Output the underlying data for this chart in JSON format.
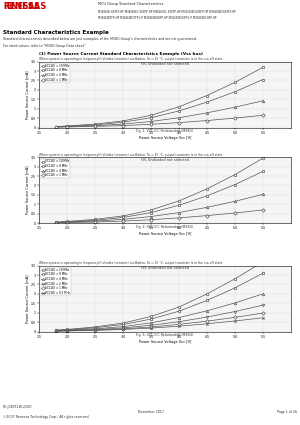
{
  "title_right": "MCU Group Standard Characteristics",
  "title_right2": "M38260E XXXFP-HP M38260EC XXXFP-HP M38260EL XXXFP-HP M38260ECXXXFP-HP M38260ECXXXFP-HP",
  "title_right3": "M38260ETFP-HP M38260ECYFP-HP M38260EDHFP-HP M38260ECHFP-HP M38260ECHFP-HP",
  "section_title": "Standard Characteristics Example",
  "section_sub1": "Standard characteristics described below are just examples of the M38G Group's characteristics and are not guaranteed.",
  "section_sub2": "For rated values, refer to \"M38G Group Data sheet\".",
  "chart1_title": "(1) Power Source Current Standard Characteristics Example (Vss bus)",
  "chart1_condition": "When system is operating in frequency(f) divides (ceramic) oscillation, Ta = 25 °C, output transistor is in the cut-off state.",
  "chart1_subtitle": "H/L Undivided not selected",
  "chart1_xlabel": "Power Source Voltage Vcc [V]",
  "chart1_ylabel": "Power Source Current [mA]",
  "chart1_figcap": "Fig. 1: VCC-ICC Relationship (M38G)",
  "chart2_condition": "When system is operating in frequency(f) divides (ceramic) oscillation, Ta = 25 °C, output transistor is in the cut-off state.",
  "chart2_subtitle": "H/L Undivided not selected",
  "chart2_xlabel": "Power Source Voltage Vcc [V]",
  "chart2_ylabel": "Power Source Current [mA]",
  "chart2_figcap": "Fig. 2: VCC-ICC Relationship (M38G)",
  "chart3_condition": "When system is operating in frequency(f) divides (ceramic) oscillation, Ta = 25 °C, output transistor is in the cut-off state.",
  "chart3_subtitle": "H/L Undivided not selected",
  "chart3_xlabel": "Power Source Voltage Vcc [V]",
  "chart3_ylabel": "Power Source Current [mA]",
  "chart3_figcap": "Fig. 3: VCC-ICC Relationship (M38G)",
  "vcc": [
    1.8,
    2.0,
    2.5,
    3.0,
    3.5,
    4.0,
    4.5,
    5.0,
    5.5
  ],
  "chart1_series": [
    {
      "label": "f(CCLK) = 10 MHz",
      "marker": "o",
      "color": "#555555",
      "data": [
        0.05,
        0.08,
        0.18,
        0.35,
        0.65,
        1.1,
        1.7,
        2.4,
        3.2
      ]
    },
    {
      "label": "f(CCLK) = 8 MHz",
      "marker": "s",
      "color": "#555555",
      "data": [
        0.04,
        0.07,
        0.14,
        0.28,
        0.52,
        0.88,
        1.35,
        1.9,
        2.55
      ]
    },
    {
      "label": "f(CCLK) = 4 MHz",
      "marker": "^",
      "color": "#555555",
      "data": [
        0.03,
        0.05,
        0.1,
        0.18,
        0.32,
        0.52,
        0.78,
        1.08,
        1.42
      ]
    },
    {
      "label": "f(CCLK) = 1 MHz",
      "marker": "D",
      "color": "#555555",
      "data": [
        0.02,
        0.03,
        0.06,
        0.1,
        0.17,
        0.26,
        0.37,
        0.5,
        0.65
      ]
    }
  ],
  "chart2_series": [
    {
      "label": "f(CCLK) = 10 MHz",
      "marker": "o",
      "color": "#555555",
      "data": [
        0.05,
        0.09,
        0.2,
        0.38,
        0.7,
        1.18,
        1.82,
        2.58,
        3.45
      ]
    },
    {
      "label": "f(CCLK) = 8 MHz",
      "marker": "s",
      "color": "#555555",
      "data": [
        0.04,
        0.07,
        0.15,
        0.3,
        0.56,
        0.95,
        1.45,
        2.05,
        2.75
      ]
    },
    {
      "label": "f(CCLK) = 4 MHz",
      "marker": "^",
      "color": "#555555",
      "data": [
        0.03,
        0.05,
        0.11,
        0.2,
        0.35,
        0.56,
        0.84,
        1.16,
        1.53
      ]
    },
    {
      "label": "f(CCLK) = 1 MHz",
      "marker": "D",
      "color": "#555555",
      "data": [
        0.02,
        0.03,
        0.06,
        0.11,
        0.18,
        0.28,
        0.4,
        0.54,
        0.7
      ]
    }
  ],
  "chart3_series": [
    {
      "label": "f(CCLK) = 10 MHz",
      "marker": "o",
      "color": "#555555",
      "data": [
        0.07,
        0.11,
        0.24,
        0.45,
        0.8,
        1.3,
        2.0,
        2.8,
        3.7
      ]
    },
    {
      "label": "f(CCLK) = 8 MHz",
      "marker": "s",
      "color": "#555555",
      "data": [
        0.06,
        0.09,
        0.2,
        0.37,
        0.66,
        1.08,
        1.65,
        2.32,
        3.1
      ]
    },
    {
      "label": "f(CCLK) = 4 MHz",
      "marker": "^",
      "color": "#555555",
      "data": [
        0.04,
        0.07,
        0.14,
        0.26,
        0.46,
        0.74,
        1.1,
        1.52,
        2.0
      ]
    },
    {
      "label": "f(CCLK) = 2 MHz",
      "marker": "v",
      "color": "#555555",
      "data": [
        0.03,
        0.05,
        0.1,
        0.19,
        0.33,
        0.52,
        0.77,
        1.06,
        1.4
      ]
    },
    {
      "label": "f(CCLK) = 1 MHz",
      "marker": "D",
      "color": "#555555",
      "data": [
        0.03,
        0.04,
        0.08,
        0.14,
        0.24,
        0.38,
        0.55,
        0.75,
        0.98
      ]
    },
    {
      "label": "f(CCLK) = 0.5 MHz",
      "marker": "x",
      "color": "#555555",
      "data": [
        0.02,
        0.03,
        0.06,
        0.11,
        0.18,
        0.28,
        0.41,
        0.56,
        0.73
      ]
    }
  ],
  "footer_left1": "RE-J08Y11W-2200",
  "footer_left2": "©2007 Renesas Technology Corp., All rights reserved.",
  "footer_mid": "November 2017",
  "footer_right": "Page 1 of 26",
  "bg_color": "#ffffff",
  "grid_color": "#cccccc",
  "header_blue": "#003399"
}
